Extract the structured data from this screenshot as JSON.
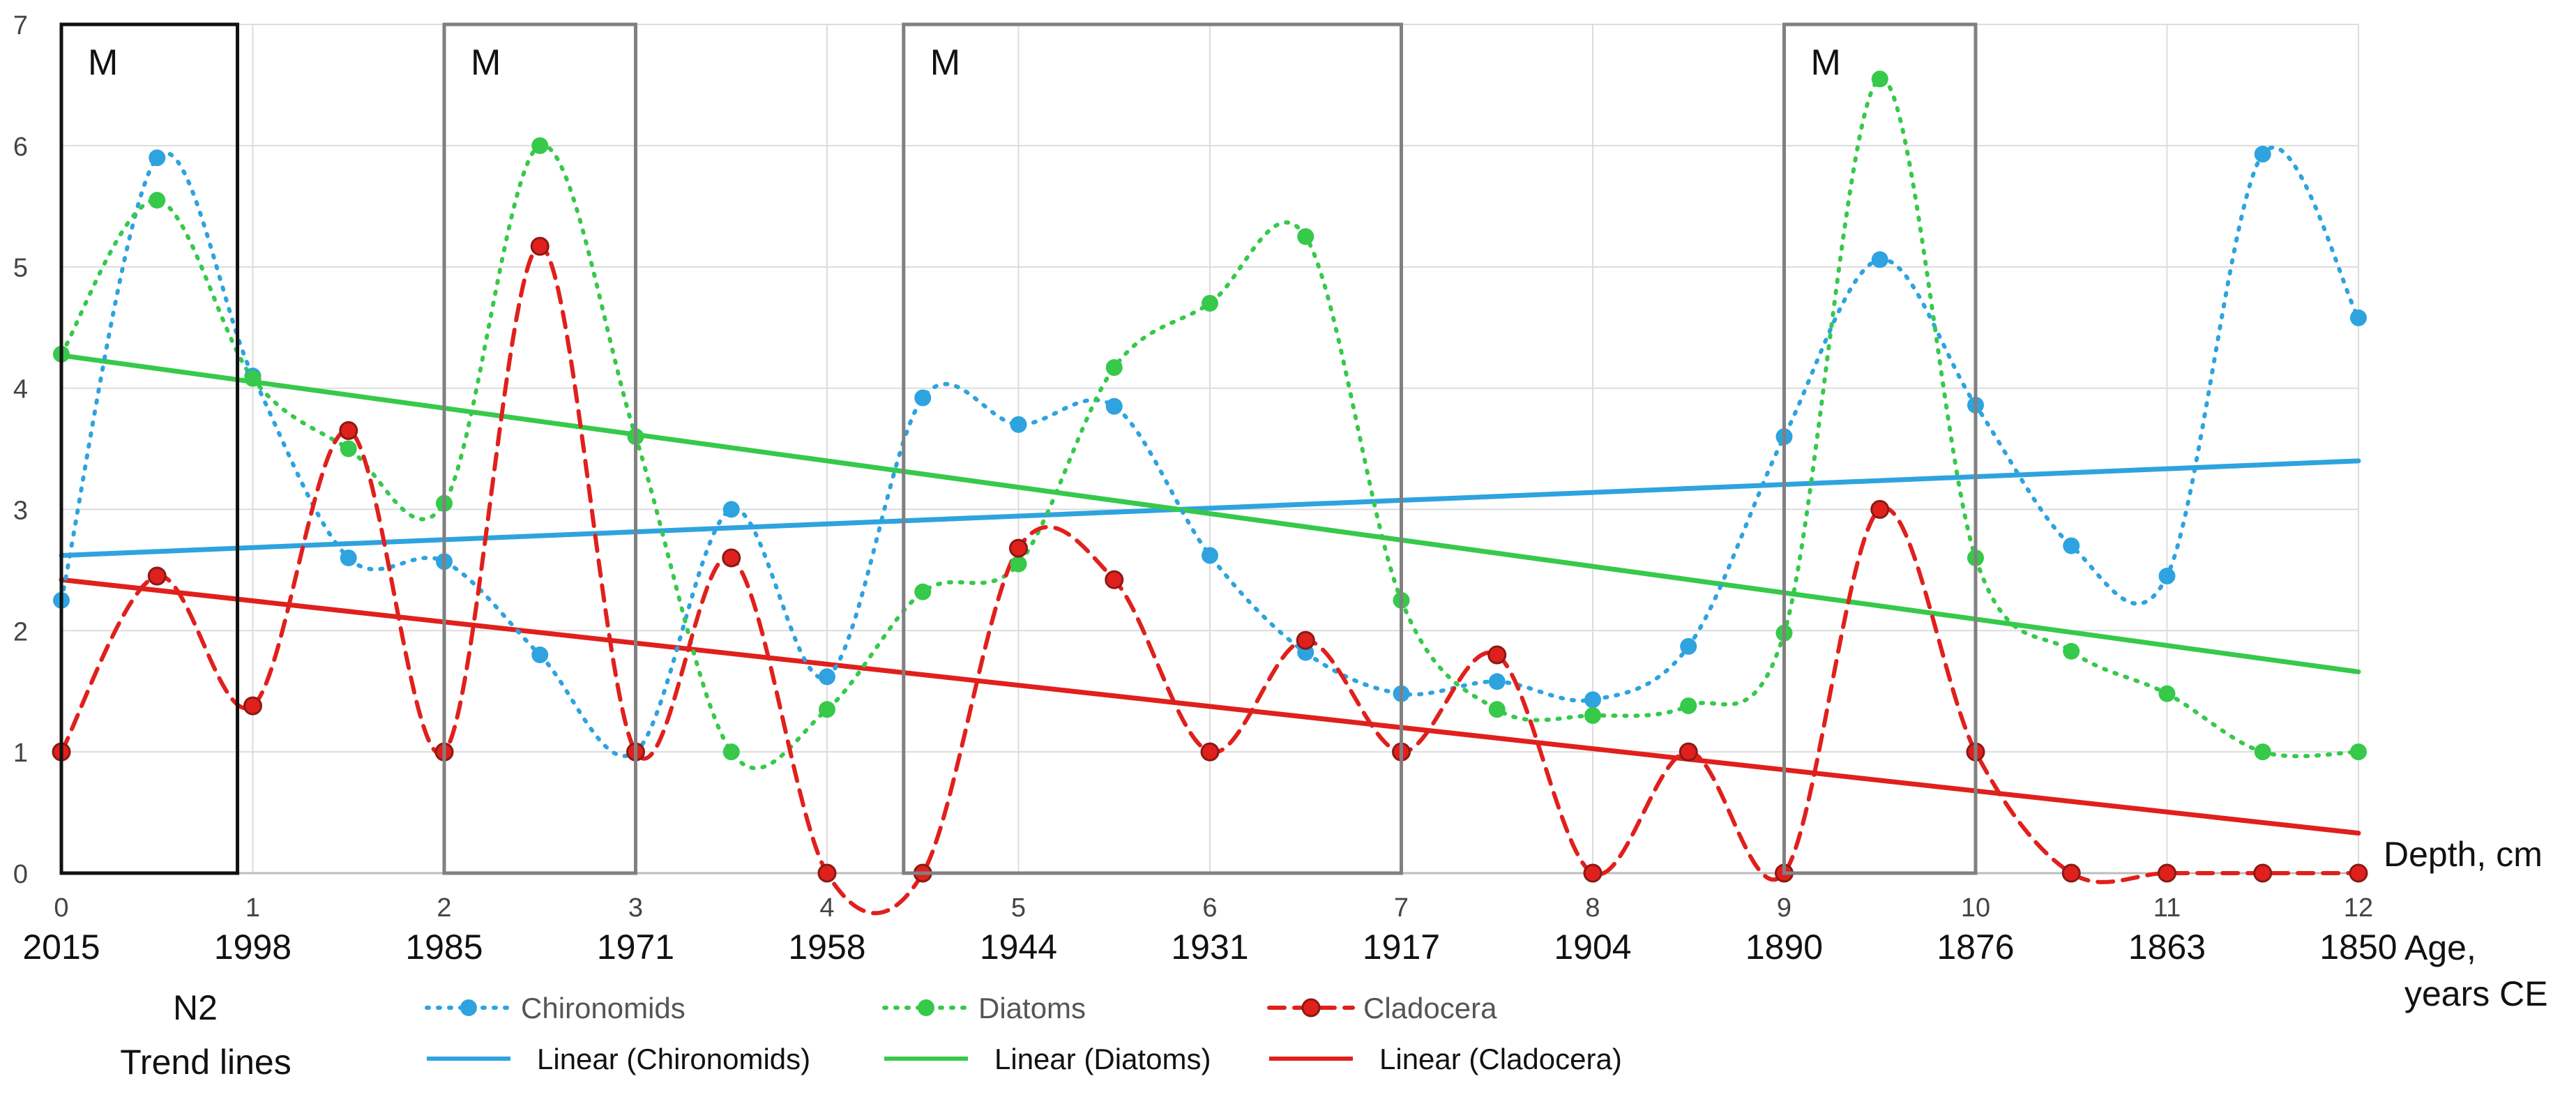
{
  "chart_data": {
    "type": "line",
    "title": "",
    "x_label": "Depth, cm",
    "age_label_line1": "Age,",
    "age_label_line2": "years CE",
    "xlim": [
      0,
      12
    ],
    "ylim": [
      0,
      7
    ],
    "x_ticks": [
      "0",
      "1",
      "2",
      "3",
      "4",
      "5",
      "6",
      "7",
      "8",
      "9",
      "10",
      "11",
      "12"
    ],
    "y_ticks": [
      "0",
      "1",
      "2",
      "3",
      "4",
      "5",
      "6",
      "7"
    ],
    "age_ticks": [
      {
        "x": 0,
        "label": "2015"
      },
      {
        "x": 1,
        "label": "1998"
      },
      {
        "x": 2,
        "label": "1985"
      },
      {
        "x": 3,
        "label": "1971"
      },
      {
        "x": 4,
        "label": "1958"
      },
      {
        "x": 5,
        "label": "1944"
      },
      {
        "x": 6,
        "label": "1931"
      },
      {
        "x": 7,
        "label": "1917"
      },
      {
        "x": 8,
        "label": "1904"
      },
      {
        "x": 9,
        "label": "1890"
      },
      {
        "x": 10,
        "label": "1876"
      },
      {
        "x": 11,
        "label": "1863"
      },
      {
        "x": 12,
        "label": "1850"
      }
    ],
    "series": [
      {
        "name": "Chironomids",
        "color": "#2ea3df",
        "style": "dotted",
        "points": [
          [
            0,
            2.25
          ],
          [
            0.5,
            5.9
          ],
          [
            1,
            4.1
          ],
          [
            1.5,
            2.6
          ],
          [
            2,
            2.57
          ],
          [
            2.5,
            1.8
          ],
          [
            3,
            1.0
          ],
          [
            3.5,
            3.0
          ],
          [
            4,
            1.62
          ],
          [
            4.5,
            3.92
          ],
          [
            5,
            3.7
          ],
          [
            5.5,
            3.85
          ],
          [
            6,
            2.62
          ],
          [
            6.5,
            1.82
          ],
          [
            7,
            1.48
          ],
          [
            7.5,
            1.58
          ],
          [
            8,
            1.43
          ],
          [
            8.5,
            1.87
          ],
          [
            9,
            3.6
          ],
          [
            9.5,
            5.06
          ],
          [
            10,
            3.86
          ],
          [
            10.5,
            2.7
          ],
          [
            11,
            2.45
          ],
          [
            11.5,
            5.93
          ],
          [
            12,
            4.58
          ]
        ]
      },
      {
        "name": "Diatoms",
        "color": "#36c94a",
        "style": "dotted",
        "points": [
          [
            0,
            4.28
          ],
          [
            0.5,
            5.55
          ],
          [
            1,
            4.08
          ],
          [
            1.5,
            3.5
          ],
          [
            2,
            3.05
          ],
          [
            2.5,
            6.0
          ],
          [
            3,
            3.6
          ],
          [
            3.5,
            1.0
          ],
          [
            4,
            1.35
          ],
          [
            4.5,
            2.32
          ],
          [
            5,
            2.55
          ],
          [
            5.5,
            4.17
          ],
          [
            6,
            4.7
          ],
          [
            6.5,
            5.25
          ],
          [
            7,
            2.25
          ],
          [
            7.5,
            1.35
          ],
          [
            8,
            1.3
          ],
          [
            8.5,
            1.38
          ],
          [
            9,
            1.98
          ],
          [
            9.5,
            6.55
          ],
          [
            10,
            2.6
          ],
          [
            10.5,
            1.83
          ],
          [
            11,
            1.48
          ],
          [
            11.5,
            1.0
          ],
          [
            12,
            1.0
          ]
        ]
      },
      {
        "name": "Cladocera",
        "color": "#e0201c",
        "style": "dashed",
        "points": [
          [
            0,
            1.0
          ],
          [
            0.5,
            2.45
          ],
          [
            1,
            1.38
          ],
          [
            1.5,
            3.65
          ],
          [
            2,
            1.0
          ],
          [
            2.5,
            5.17
          ],
          [
            3,
            1.0
          ],
          [
            3.5,
            2.6
          ],
          [
            4,
            0.0
          ],
          [
            4.5,
            0.0
          ],
          [
            5,
            2.68
          ],
          [
            5.5,
            2.42
          ],
          [
            6,
            1.0
          ],
          [
            6.5,
            1.92
          ],
          [
            7,
            1.0
          ],
          [
            7.5,
            1.8
          ],
          [
            8,
            0.0
          ],
          [
            8.5,
            1.0
          ],
          [
            9,
            0.0
          ],
          [
            9.5,
            3.0
          ],
          [
            10,
            1.0
          ],
          [
            10.5,
            0.0
          ],
          [
            11,
            0.0
          ],
          [
            11.5,
            0.0
          ],
          [
            12,
            0.0
          ]
        ]
      }
    ],
    "trend_lines": [
      {
        "name": "Linear (Chironomids)",
        "color": "#2ea3df",
        "y_start": 2.62,
        "y_end": 3.4
      },
      {
        "name": "Linear (Diatoms)",
        "color": "#36c94a",
        "y_start": 4.27,
        "y_end": 1.66
      },
      {
        "name": "Linear (Cladocera)",
        "color": "#e0201c",
        "y_start": 2.42,
        "y_end": 0.33
      }
    ],
    "marked_intervals": [
      {
        "label": "M",
        "x_start": 0,
        "x_end": 0.92,
        "color": "#111111"
      },
      {
        "label": "M",
        "x_start": 2,
        "x_end": 3,
        "color": "#808080"
      },
      {
        "label": "M",
        "x_start": 4.4,
        "x_end": 7,
        "color": "#808080"
      },
      {
        "label": "M",
        "x_start": 9,
        "x_end": 10,
        "color": "#808080"
      }
    ],
    "legend_title_1": "N2",
    "legend_title_2": "Trend lines",
    "legend_position": "bottom"
  }
}
